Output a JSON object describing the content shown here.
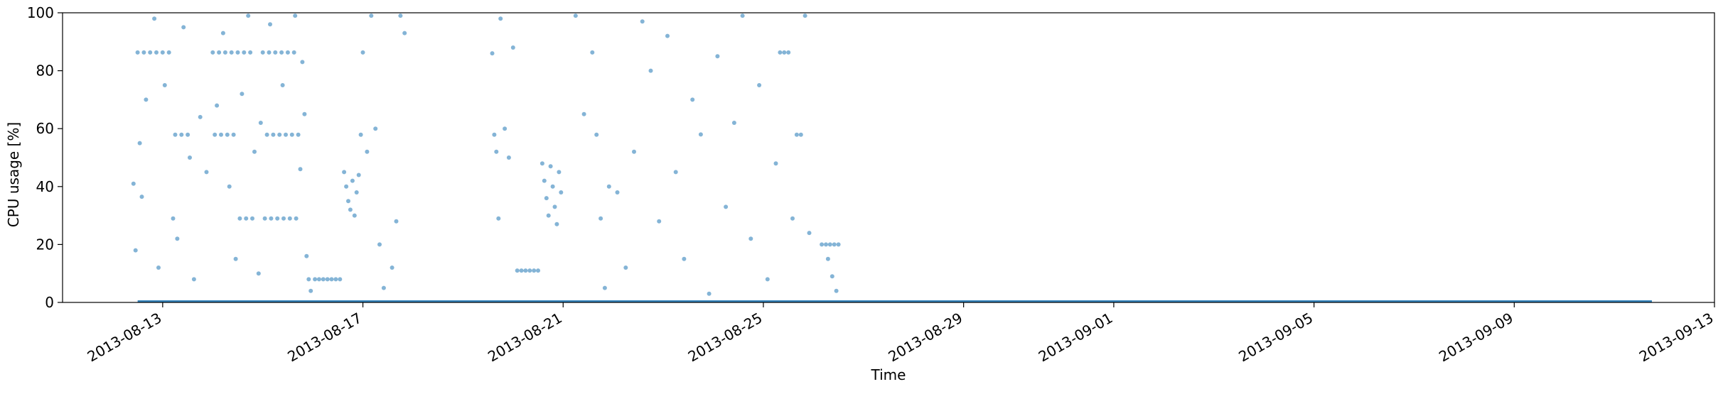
{
  "chart_data": {
    "type": "scatter",
    "xlabel": "Time",
    "ylabel": "CPU usage [%]",
    "xlim": [
      "2013-08-11",
      "2013-09-13"
    ],
    "ylim": [
      0,
      100
    ],
    "y_ticks": [
      0,
      20,
      40,
      60,
      80,
      100
    ],
    "x_ticks": [
      "2013-08-13",
      "2013-08-17",
      "2013-08-21",
      "2013-08-25",
      "2013-08-29",
      "2013-09-01",
      "2013-09-05",
      "2013-09-09",
      "2013-09-13"
    ],
    "grid": false,
    "legend": "none",
    "color": "#1f77b4",
    "series": [
      {
        "points": [
          [
            "2013-08-12T12:00",
            86.3
          ],
          [
            "2013-08-12T15:00",
            86.3
          ],
          [
            "2013-08-12T18:00",
            86.3
          ],
          [
            "2013-08-12T21:00",
            86.3
          ],
          [
            "2013-08-13T00:00",
            86.3
          ],
          [
            "2013-08-13T03:00",
            86.3
          ],
          [
            "2013-08-13T06:00",
            57.9
          ],
          [
            "2013-08-13T09:00",
            57.9
          ],
          [
            "2013-08-13T12:00",
            57.9
          ],
          [
            "2013-08-12T14:00",
            36.5
          ],
          [
            "2013-08-13T05:00",
            29.0
          ],
          [
            "2013-08-12T10:00",
            41.0
          ],
          [
            "2013-08-12T13:00",
            55.0
          ],
          [
            "2013-08-12T16:00",
            70.0
          ],
          [
            "2013-08-12T20:00",
            98.0
          ],
          [
            "2013-08-13T01:00",
            75.0
          ],
          [
            "2013-08-13T10:00",
            95.0
          ],
          [
            "2013-08-13T13:00",
            50.0
          ],
          [
            "2013-08-12T11:00",
            18.0
          ],
          [
            "2013-08-12T22:00",
            12.0
          ],
          [
            "2013-08-13T07:00",
            22.0
          ],
          [
            "2013-08-13T15:00",
            8.0
          ],
          [
            "2013-08-13T18:00",
            64.0
          ],
          [
            "2013-08-13T21:00",
            45.0
          ],
          [
            "2013-08-14T00:00",
            86.3
          ],
          [
            "2013-08-14T03:00",
            86.3
          ],
          [
            "2013-08-14T06:00",
            86.3
          ],
          [
            "2013-08-14T09:00",
            86.3
          ],
          [
            "2013-08-14T12:00",
            86.3
          ],
          [
            "2013-08-14T15:00",
            86.3
          ],
          [
            "2013-08-14T18:00",
            86.3
          ],
          [
            "2013-08-14T01:00",
            57.9
          ],
          [
            "2013-08-14T04:00",
            57.9
          ],
          [
            "2013-08-14T07:00",
            57.9
          ],
          [
            "2013-08-14T10:00",
            57.9
          ],
          [
            "2013-08-14T13:00",
            29.0
          ],
          [
            "2013-08-14T16:00",
            29.0
          ],
          [
            "2013-08-14T19:00",
            29.0
          ],
          [
            "2013-08-14T02:00",
            68.0
          ],
          [
            "2013-08-14T05:00",
            93.0
          ],
          [
            "2013-08-14T08:00",
            40.0
          ],
          [
            "2013-08-14T11:00",
            15.0
          ],
          [
            "2013-08-14T14:00",
            72.0
          ],
          [
            "2013-08-14T17:00",
            99.0
          ],
          [
            "2013-08-14T20:00",
            52.0
          ],
          [
            "2013-08-14T22:00",
            10.0
          ],
          [
            "2013-08-15T00:00",
            86.3
          ],
          [
            "2013-08-15T03:00",
            86.3
          ],
          [
            "2013-08-15T06:00",
            86.3
          ],
          [
            "2013-08-15T09:00",
            86.3
          ],
          [
            "2013-08-15T12:00",
            86.3
          ],
          [
            "2013-08-15T15:00",
            86.3
          ],
          [
            "2013-08-15T01:00",
            29.0
          ],
          [
            "2013-08-15T04:00",
            29.0
          ],
          [
            "2013-08-15T07:00",
            29.0
          ],
          [
            "2013-08-15T10:00",
            29.0
          ],
          [
            "2013-08-15T13:00",
            29.0
          ],
          [
            "2013-08-15T16:00",
            29.0
          ],
          [
            "2013-08-15T02:00",
            57.9
          ],
          [
            "2013-08-15T05:00",
            57.9
          ],
          [
            "2013-08-15T08:00",
            57.9
          ],
          [
            "2013-08-15T11:00",
            57.9
          ],
          [
            "2013-08-15T14:00",
            57.9
          ],
          [
            "2013-08-15T17:00",
            57.9
          ],
          [
            "2013-08-15T18:00",
            46.0
          ],
          [
            "2013-08-15T19:00",
            83.0
          ],
          [
            "2013-08-15T20:00",
            65.0
          ],
          [
            "2013-08-15T21:00",
            16.0
          ],
          [
            "2013-08-15T22:00",
            8.0
          ],
          [
            "2013-08-15T23:00",
            4.0
          ],
          [
            "2013-08-15T03:30",
            96.0
          ],
          [
            "2013-08-15T09:30",
            75.0
          ],
          [
            "2013-08-15T15:30",
            99.0
          ],
          [
            "2013-08-14T23:00",
            62.0
          ],
          [
            "2013-08-16T01:00",
            8.0
          ],
          [
            "2013-08-16T03:00",
            8.0
          ],
          [
            "2013-08-16T05:00",
            8.0
          ],
          [
            "2013-08-16T07:00",
            8.0
          ],
          [
            "2013-08-16T09:00",
            8.0
          ],
          [
            "2013-08-16T11:00",
            8.0
          ],
          [
            "2013-08-16T13:00",
            8.0
          ],
          [
            "2013-08-16T15:00",
            45.0
          ],
          [
            "2013-08-16T16:00",
            40.0
          ],
          [
            "2013-08-16T17:00",
            35.0
          ],
          [
            "2013-08-16T18:00",
            32.0
          ],
          [
            "2013-08-16T19:00",
            42.0
          ],
          [
            "2013-08-16T20:00",
            30.0
          ],
          [
            "2013-08-16T21:00",
            38.0
          ],
          [
            "2013-08-16T22:00",
            44.0
          ],
          [
            "2013-08-16T23:00",
            57.9
          ],
          [
            "2013-08-17T00:00",
            86.3
          ],
          [
            "2013-08-17T02:00",
            52.0
          ],
          [
            "2013-08-17T04:00",
            99.0
          ],
          [
            "2013-08-17T06:00",
            60.0
          ],
          [
            "2013-08-17T08:00",
            20.0
          ],
          [
            "2013-08-17T10:00",
            5.0
          ],
          [
            "2013-08-17T14:00",
            12.0
          ],
          [
            "2013-08-17T16:00",
            28.0
          ],
          [
            "2013-08-17T18:00",
            99.0
          ],
          [
            "2013-08-17T20:00",
            93.0
          ],
          [
            "2013-08-19T14:00",
            86.0
          ],
          [
            "2013-08-19T15:00",
            57.9
          ],
          [
            "2013-08-19T16:00",
            52.0
          ],
          [
            "2013-08-19T17:00",
            29.0
          ],
          [
            "2013-08-19T18:00",
            98.0
          ],
          [
            "2013-08-19T20:00",
            60.0
          ],
          [
            "2013-08-19T22:00",
            50.0
          ],
          [
            "2013-08-20T00:00",
            88.0
          ],
          [
            "2013-08-20T02:00",
            11.0
          ],
          [
            "2013-08-20T04:00",
            11.0
          ],
          [
            "2013-08-20T06:00",
            11.0
          ],
          [
            "2013-08-20T08:00",
            11.0
          ],
          [
            "2013-08-20T10:00",
            11.0
          ],
          [
            "2013-08-20T12:00",
            11.0
          ],
          [
            "2013-08-20T14:00",
            48.0
          ],
          [
            "2013-08-20T15:00",
            42.0
          ],
          [
            "2013-08-20T16:00",
            36.0
          ],
          [
            "2013-08-20T17:00",
            30.0
          ],
          [
            "2013-08-20T18:00",
            47.0
          ],
          [
            "2013-08-20T19:00",
            40.0
          ],
          [
            "2013-08-20T20:00",
            33.0
          ],
          [
            "2013-08-20T21:00",
            27.0
          ],
          [
            "2013-08-20T22:00",
            45.0
          ],
          [
            "2013-08-20T23:00",
            38.0
          ],
          [
            "2013-08-21T06:00",
            99.0
          ],
          [
            "2013-08-21T10:00",
            65.0
          ],
          [
            "2013-08-21T14:00",
            86.3
          ],
          [
            "2013-08-21T16:00",
            57.9
          ],
          [
            "2013-08-21T18:00",
            29.0
          ],
          [
            "2013-08-21T20:00",
            5.0
          ],
          [
            "2013-08-21T22:00",
            40.0
          ],
          [
            "2013-08-22T02:00",
            38.0
          ],
          [
            "2013-08-22T06:00",
            12.0
          ],
          [
            "2013-08-22T10:00",
            52.0
          ],
          [
            "2013-08-22T14:00",
            97.0
          ],
          [
            "2013-08-22T18:00",
            80.0
          ],
          [
            "2013-08-22T22:00",
            28.0
          ],
          [
            "2013-08-23T02:00",
            92.0
          ],
          [
            "2013-08-23T06:00",
            45.0
          ],
          [
            "2013-08-23T10:00",
            15.0
          ],
          [
            "2013-08-23T14:00",
            70.0
          ],
          [
            "2013-08-23T18:00",
            58.0
          ],
          [
            "2013-08-23T22:00",
            3.0
          ],
          [
            "2013-08-24T02:00",
            85.0
          ],
          [
            "2013-08-24T06:00",
            33.0
          ],
          [
            "2013-08-24T10:00",
            62.0
          ],
          [
            "2013-08-24T14:00",
            99.0
          ],
          [
            "2013-08-24T18:00",
            22.0
          ],
          [
            "2013-08-24T22:00",
            75.0
          ],
          [
            "2013-08-25T02:00",
            8.0
          ],
          [
            "2013-08-25T06:00",
            48.0
          ],
          [
            "2013-08-25T08:00",
            86.3
          ],
          [
            "2013-08-25T10:00",
            86.3
          ],
          [
            "2013-08-25T12:00",
            86.3
          ],
          [
            "2013-08-25T14:00",
            29.0
          ],
          [
            "2013-08-25T16:00",
            57.9
          ],
          [
            "2013-08-25T18:00",
            57.9
          ],
          [
            "2013-08-25T20:00",
            99.0
          ],
          [
            "2013-08-25T22:00",
            24.0
          ],
          [
            "2013-08-26T04:00",
            20.0
          ],
          [
            "2013-08-26T06:00",
            20.0
          ],
          [
            "2013-08-26T08:00",
            20.0
          ],
          [
            "2013-08-26T10:00",
            20.0
          ],
          [
            "2013-08-26T12:00",
            20.0
          ],
          [
            "2013-08-26T07:00",
            15.0
          ],
          [
            "2013-08-26T09:00",
            9.0
          ],
          [
            "2013-08-26T11:00",
            4.0
          ]
        ],
        "baseline": {
          "from": "2013-08-12T12:00",
          "to": "2013-09-11T18:00",
          "value": 0.3
        }
      }
    ]
  }
}
